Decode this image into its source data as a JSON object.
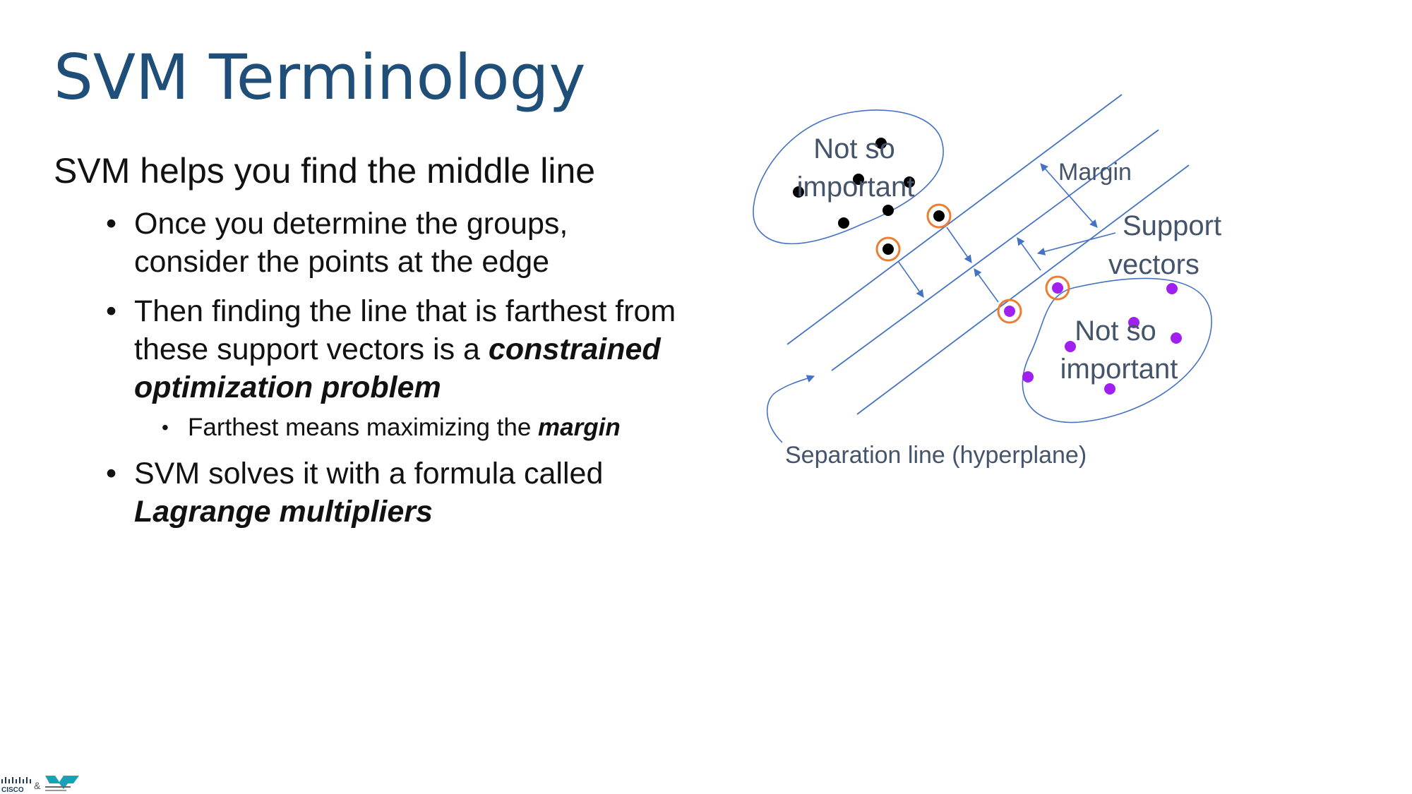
{
  "slide": {
    "title": "SVM Terminology",
    "lead": "SVM helps you find the middle line",
    "bullets": [
      {
        "text": "Once you determine the groups, consider the points at the edge"
      },
      {
        "text": "Then finding the line that is farthest from these support vectors is a ",
        "emphasis": "constrained optimization problem"
      },
      {
        "text": "SVM solves it with a formula called ",
        "emphasis": "Lagrange multipliers"
      }
    ],
    "sub_bullet": {
      "text": "Farthest means maximizing the ",
      "emphasis": "margin"
    }
  },
  "diagram": {
    "group_top": {
      "label_line1": "Not so",
      "label_line2": "important",
      "point_color": "#000000"
    },
    "group_bottom": {
      "label_line1": "Not so",
      "label_line2": "important",
      "point_color": "#a020f0"
    },
    "margin_label": "Margin",
    "support_label_line1": "Support",
    "support_label_line2": "vectors",
    "separation_label": "Separation line (hyperplane)",
    "colors": {
      "line": "#4472c4",
      "ring": "#ed7d31",
      "label": "#44546a"
    }
  },
  "footer": {
    "logo_text": "CISCO",
    "logo_connector": "&"
  }
}
